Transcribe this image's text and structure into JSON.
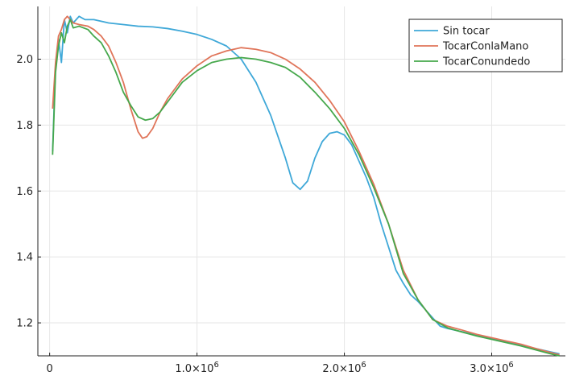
{
  "chart_data": {
    "type": "line",
    "title": "",
    "xlabel": "",
    "ylabel": "",
    "xlim": [
      -80000,
      3500000
    ],
    "ylim": [
      1.1,
      2.16
    ],
    "grid": true,
    "legend_position": "top-right",
    "x_ticks": [
      {
        "value": 0,
        "label": "0"
      },
      {
        "value": 1000000,
        "label": "1.0×10",
        "exp": "6"
      },
      {
        "value": 2000000,
        "label": "2.0×10",
        "exp": "6"
      },
      {
        "value": 3000000,
        "label": "3.0×10",
        "exp": "6"
      }
    ],
    "y_ticks": [
      {
        "value": 1.2,
        "label": "1.2"
      },
      {
        "value": 1.4,
        "label": "1.4"
      },
      {
        "value": 1.6,
        "label": "1.6"
      },
      {
        "value": 1.8,
        "label": "1.8"
      },
      {
        "value": 2.0,
        "label": "2.0"
      }
    ],
    "series": [
      {
        "name": "Sin tocar",
        "color": "#3fa8d8",
        "points": [
          [
            20000,
            1.72
          ],
          [
            40000,
            1.98
          ],
          [
            60000,
            2.06
          ],
          [
            80000,
            1.99
          ],
          [
            100000,
            2.12
          ],
          [
            120000,
            2.08
          ],
          [
            140000,
            2.13
          ],
          [
            160000,
            2.11
          ],
          [
            180000,
            2.12
          ],
          [
            200000,
            2.13
          ],
          [
            240000,
            2.12
          ],
          [
            300000,
            2.12
          ],
          [
            400000,
            2.11
          ],
          [
            500000,
            2.105
          ],
          [
            600000,
            2.1
          ],
          [
            700000,
            2.098
          ],
          [
            800000,
            2.093
          ],
          [
            900000,
            2.085
          ],
          [
            1000000,
            2.075
          ],
          [
            1100000,
            2.06
          ],
          [
            1200000,
            2.04
          ],
          [
            1300000,
            2.0
          ],
          [
            1400000,
            1.93
          ],
          [
            1500000,
            1.83
          ],
          [
            1600000,
            1.7
          ],
          [
            1650000,
            1.625
          ],
          [
            1700000,
            1.605
          ],
          [
            1750000,
            1.63
          ],
          [
            1800000,
            1.7
          ],
          [
            1850000,
            1.75
          ],
          [
            1900000,
            1.775
          ],
          [
            1950000,
            1.78
          ],
          [
            2000000,
            1.77
          ],
          [
            2050000,
            1.74
          ],
          [
            2100000,
            1.69
          ],
          [
            2150000,
            1.64
          ],
          [
            2200000,
            1.58
          ],
          [
            2250000,
            1.5
          ],
          [
            2300000,
            1.43
          ],
          [
            2350000,
            1.36
          ],
          [
            2400000,
            1.32
          ],
          [
            2450000,
            1.285
          ],
          [
            2500000,
            1.265
          ],
          [
            2550000,
            1.24
          ],
          [
            2600000,
            1.215
          ],
          [
            2650000,
            1.19
          ],
          [
            2700000,
            1.183
          ],
          [
            2800000,
            1.173
          ],
          [
            2900000,
            1.162
          ],
          [
            3000000,
            1.152
          ],
          [
            3100000,
            1.142
          ],
          [
            3200000,
            1.132
          ],
          [
            3300000,
            1.122
          ],
          [
            3400000,
            1.112
          ],
          [
            3460000,
            1.106
          ]
        ]
      },
      {
        "name": "TocarConlaMano",
        "color": "#e0755a",
        "points": [
          [
            20000,
            1.85
          ],
          [
            40000,
            1.99
          ],
          [
            60000,
            2.07
          ],
          [
            80000,
            2.09
          ],
          [
            100000,
            2.12
          ],
          [
            120000,
            2.13
          ],
          [
            140000,
            2.12
          ],
          [
            160000,
            2.11
          ],
          [
            200000,
            2.105
          ],
          [
            260000,
            2.1
          ],
          [
            300000,
            2.09
          ],
          [
            350000,
            2.07
          ],
          [
            400000,
            2.04
          ],
          [
            450000,
            1.99
          ],
          [
            500000,
            1.93
          ],
          [
            550000,
            1.85
          ],
          [
            600000,
            1.78
          ],
          [
            630000,
            1.76
          ],
          [
            660000,
            1.765
          ],
          [
            700000,
            1.79
          ],
          [
            750000,
            1.84
          ],
          [
            800000,
            1.88
          ],
          [
            900000,
            1.94
          ],
          [
            1000000,
            1.98
          ],
          [
            1100000,
            2.01
          ],
          [
            1200000,
            2.025
          ],
          [
            1300000,
            2.035
          ],
          [
            1400000,
            2.03
          ],
          [
            1500000,
            2.02
          ],
          [
            1600000,
            2.0
          ],
          [
            1700000,
            1.97
          ],
          [
            1800000,
            1.93
          ],
          [
            1900000,
            1.875
          ],
          [
            2000000,
            1.81
          ],
          [
            2100000,
            1.72
          ],
          [
            2200000,
            1.62
          ],
          [
            2300000,
            1.5
          ],
          [
            2400000,
            1.36
          ],
          [
            2500000,
            1.27
          ],
          [
            2600000,
            1.21
          ],
          [
            2700000,
            1.19
          ],
          [
            2800000,
            1.178
          ],
          [
            2900000,
            1.165
          ],
          [
            3000000,
            1.155
          ],
          [
            3100000,
            1.145
          ],
          [
            3200000,
            1.135
          ],
          [
            3300000,
            1.122
          ],
          [
            3400000,
            1.11
          ],
          [
            3460000,
            1.103
          ]
        ]
      },
      {
        "name": "TocarConundedo",
        "color": "#46a84c",
        "points": [
          [
            20000,
            1.71
          ],
          [
            40000,
            1.96
          ],
          [
            60000,
            2.04
          ],
          [
            80000,
            2.08
          ],
          [
            100000,
            2.05
          ],
          [
            120000,
            2.1
          ],
          [
            140000,
            2.12
          ],
          [
            160000,
            2.095
          ],
          [
            200000,
            2.1
          ],
          [
            260000,
            2.09
          ],
          [
            300000,
            2.07
          ],
          [
            350000,
            2.05
          ],
          [
            400000,
            2.01
          ],
          [
            450000,
            1.96
          ],
          [
            500000,
            1.9
          ],
          [
            550000,
            1.86
          ],
          [
            600000,
            1.825
          ],
          [
            650000,
            1.815
          ],
          [
            700000,
            1.82
          ],
          [
            750000,
            1.84
          ],
          [
            800000,
            1.87
          ],
          [
            900000,
            1.93
          ],
          [
            1000000,
            1.965
          ],
          [
            1100000,
            1.99
          ],
          [
            1200000,
            2.0
          ],
          [
            1300000,
            2.005
          ],
          [
            1400000,
            2.0
          ],
          [
            1500000,
            1.99
          ],
          [
            1600000,
            1.975
          ],
          [
            1700000,
            1.945
          ],
          [
            1800000,
            1.9
          ],
          [
            1900000,
            1.85
          ],
          [
            2000000,
            1.79
          ],
          [
            2100000,
            1.71
          ],
          [
            2200000,
            1.61
          ],
          [
            2300000,
            1.5
          ],
          [
            2400000,
            1.35
          ],
          [
            2500000,
            1.27
          ],
          [
            2600000,
            1.21
          ],
          [
            2700000,
            1.185
          ],
          [
            2800000,
            1.172
          ],
          [
            2900000,
            1.16
          ],
          [
            3000000,
            1.15
          ],
          [
            3100000,
            1.14
          ],
          [
            3200000,
            1.13
          ],
          [
            3300000,
            1.118
          ],
          [
            3400000,
            1.106
          ],
          [
            3460000,
            1.1
          ]
        ]
      }
    ]
  }
}
